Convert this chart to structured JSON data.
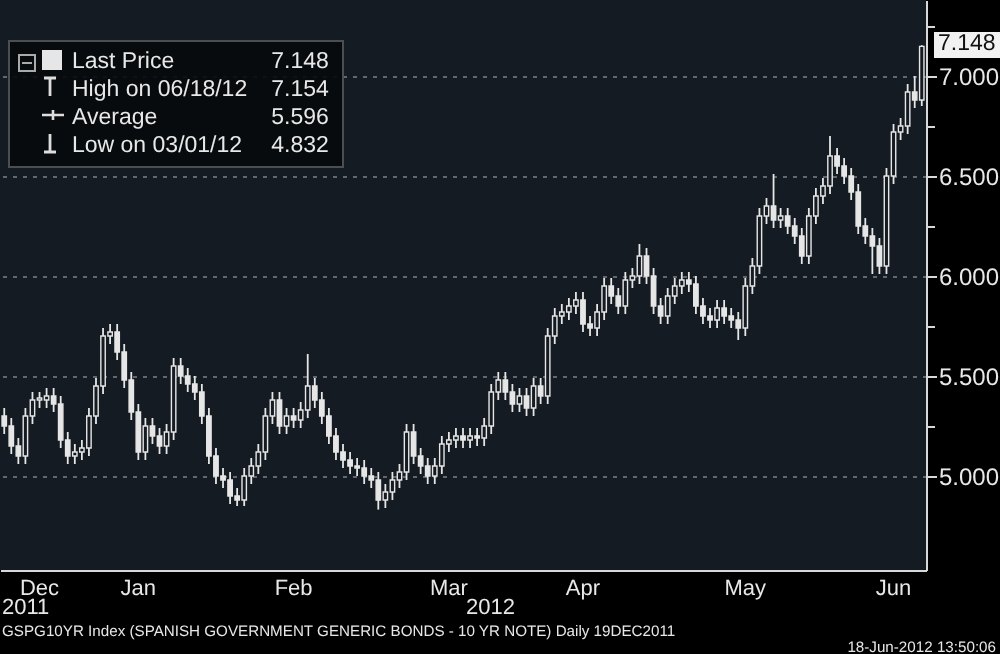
{
  "chart_data": {
    "type": "candlestick",
    "legend": "top left",
    "grid": "y",
    "categories": [
      null,
      null,
      null,
      null,
      null,
      "Dec",
      null,
      null,
      null,
      null,
      null,
      null,
      null,
      null,
      null,
      null,
      null,
      null,
      null,
      "Jan",
      null,
      null,
      null,
      null,
      null,
      null,
      null,
      null,
      null,
      null,
      null,
      null,
      null,
      null,
      null,
      null,
      null,
      null,
      null,
      null,
      null,
      "Feb",
      null,
      null,
      null,
      null,
      null,
      null,
      null,
      null,
      null,
      null,
      null,
      null,
      null,
      null,
      null,
      null,
      null,
      null,
      null,
      null,
      null,
      "Mar",
      null,
      null,
      null,
      null,
      null,
      null,
      null,
      null,
      null,
      null,
      null,
      null,
      null,
      null,
      null,
      null,
      null,
      null,
      "Apr",
      null,
      null,
      null,
      null,
      null,
      null,
      null,
      null,
      null,
      null,
      null,
      null,
      null,
      null,
      null,
      null,
      null,
      null,
      null,
      null,
      null,
      null,
      "May",
      null,
      null,
      null,
      null,
      null,
      null,
      null,
      null,
      null,
      null,
      null,
      null,
      null,
      null,
      null,
      null,
      null,
      null,
      null,
      null,
      "Jun",
      null,
      null,
      null,
      null
    ],
    "series": [
      {
        "name": "Last Price",
        "color": "#e6e6e6",
        "ohlc": [
          [
            5.3,
            5.34,
            5.21,
            5.25
          ],
          [
            5.25,
            5.29,
            5.11,
            5.15
          ],
          [
            5.15,
            5.19,
            5.06,
            5.1
          ],
          [
            5.1,
            5.34,
            5.06,
            5.3
          ],
          [
            5.3,
            5.42,
            5.26,
            5.38
          ],
          [
            5.38,
            5.42,
            5.34,
            5.39
          ],
          [
            5.38,
            5.44,
            5.34,
            5.4
          ],
          [
            5.4,
            5.44,
            5.32,
            5.36
          ],
          [
            5.36,
            5.4,
            5.14,
            5.18
          ],
          [
            5.18,
            5.22,
            5.06,
            5.1
          ],
          [
            5.1,
            5.16,
            5.06,
            5.12
          ],
          [
            5.12,
            5.18,
            5.08,
            5.14
          ],
          [
            5.14,
            5.34,
            5.1,
            5.3
          ],
          [
            5.3,
            5.49,
            5.26,
            5.45
          ],
          [
            5.45,
            5.74,
            5.41,
            5.7
          ],
          [
            5.7,
            5.76,
            5.66,
            5.72
          ],
          [
            5.72,
            5.76,
            5.58,
            5.62
          ],
          [
            5.62,
            5.66,
            5.44,
            5.48
          ],
          [
            5.48,
            5.52,
            5.28,
            5.32
          ],
          [
            5.32,
            5.36,
            5.08,
            5.12
          ],
          [
            5.12,
            5.29,
            5.08,
            5.25
          ],
          [
            5.25,
            5.29,
            5.16,
            5.2
          ],
          [
            5.2,
            5.24,
            5.11,
            5.15
          ],
          [
            5.15,
            5.26,
            5.11,
            5.22
          ],
          [
            5.22,
            5.59,
            5.18,
            5.55
          ],
          [
            5.55,
            5.59,
            5.46,
            5.5
          ],
          [
            5.5,
            5.54,
            5.42,
            5.46
          ],
          [
            5.46,
            5.5,
            5.38,
            5.42
          ],
          [
            5.42,
            5.46,
            5.26,
            5.3
          ],
          [
            5.3,
            5.34,
            5.06,
            5.1
          ],
          [
            5.1,
            5.14,
            4.96,
            5.0
          ],
          [
            5.0,
            5.04,
            4.94,
            4.98
          ],
          [
            4.98,
            5.02,
            4.86,
            4.9
          ],
          [
            4.9,
            4.94,
            4.85,
            4.88
          ],
          [
            4.88,
            5.04,
            4.85,
            5.0
          ],
          [
            5.0,
            5.09,
            4.96,
            5.05
          ],
          [
            5.05,
            5.16,
            5.01,
            5.12
          ],
          [
            5.12,
            5.34,
            5.08,
            5.3
          ],
          [
            5.3,
            5.42,
            5.26,
            5.38
          ],
          [
            5.38,
            5.42,
            5.21,
            5.25
          ],
          [
            5.25,
            5.34,
            5.21,
            5.3
          ],
          [
            5.3,
            5.34,
            5.24,
            5.28
          ],
          [
            5.28,
            5.37,
            5.24,
            5.33
          ],
          [
            5.33,
            5.61,
            5.29,
            5.45
          ],
          [
            5.45,
            5.49,
            5.34,
            5.38
          ],
          [
            5.38,
            5.42,
            5.26,
            5.3
          ],
          [
            5.3,
            5.34,
            5.16,
            5.2
          ],
          [
            5.2,
            5.24,
            5.08,
            5.12
          ],
          [
            5.12,
            5.16,
            5.04,
            5.08
          ],
          [
            5.08,
            5.12,
            5.01,
            5.05
          ],
          [
            5.05,
            5.09,
            5.0,
            5.04
          ],
          [
            5.04,
            5.08,
            4.96,
            5.0
          ],
          [
            5.0,
            5.04,
            4.94,
            4.98
          ],
          [
            4.98,
            5.02,
            4.832,
            4.88
          ],
          [
            4.88,
            4.96,
            4.84,
            4.92
          ],
          [
            4.92,
            5.02,
            4.88,
            4.98
          ],
          [
            4.98,
            5.06,
            4.94,
            5.02
          ],
          [
            5.02,
            5.26,
            4.98,
            5.22
          ],
          [
            5.22,
            5.26,
            5.06,
            5.1
          ],
          [
            5.1,
            5.14,
            5.01,
            5.05
          ],
          [
            5.05,
            5.09,
            4.96,
            5.0
          ],
          [
            5.0,
            5.09,
            4.96,
            5.05
          ],
          [
            5.05,
            5.2,
            5.01,
            5.16
          ],
          [
            5.16,
            5.22,
            5.12,
            5.18
          ],
          [
            5.18,
            5.24,
            5.14,
            5.2
          ],
          [
            5.2,
            5.24,
            5.14,
            5.18
          ],
          [
            5.18,
            5.24,
            5.14,
            5.2
          ],
          [
            5.2,
            5.24,
            5.15,
            5.19
          ],
          [
            5.19,
            5.29,
            5.15,
            5.25
          ],
          [
            5.25,
            5.46,
            5.21,
            5.42
          ],
          [
            5.42,
            5.52,
            5.38,
            5.48
          ],
          [
            5.48,
            5.52,
            5.38,
            5.42
          ],
          [
            5.42,
            5.46,
            5.32,
            5.36
          ],
          [
            5.36,
            5.44,
            5.32,
            5.4
          ],
          [
            5.4,
            5.44,
            5.3,
            5.34
          ],
          [
            5.34,
            5.49,
            5.3,
            5.45
          ],
          [
            5.45,
            5.49,
            5.36,
            5.4
          ],
          [
            5.4,
            5.74,
            5.36,
            5.7
          ],
          [
            5.7,
            5.84,
            5.66,
            5.8
          ],
          [
            5.8,
            5.86,
            5.76,
            5.82
          ],
          [
            5.82,
            5.89,
            5.78,
            5.85
          ],
          [
            5.85,
            5.92,
            5.81,
            5.88
          ],
          [
            5.88,
            5.92,
            5.72,
            5.76
          ],
          [
            5.76,
            5.8,
            5.7,
            5.74
          ],
          [
            5.74,
            5.86,
            5.7,
            5.82
          ],
          [
            5.82,
            5.99,
            5.78,
            5.95
          ],
          [
            5.95,
            5.99,
            5.86,
            5.9
          ],
          [
            5.9,
            5.94,
            5.81,
            5.85
          ],
          [
            5.85,
            6.02,
            5.81,
            5.98
          ],
          [
            5.98,
            6.04,
            5.94,
            6.0
          ],
          [
            6.0,
            6.16,
            5.96,
            6.1
          ],
          [
            6.1,
            6.14,
            5.96,
            6.0
          ],
          [
            6.0,
            6.04,
            5.81,
            5.85
          ],
          [
            5.85,
            5.89,
            5.76,
            5.8
          ],
          [
            5.8,
            5.94,
            5.76,
            5.9
          ],
          [
            5.9,
            5.99,
            5.86,
            5.95
          ],
          [
            5.95,
            6.02,
            5.91,
            5.98
          ],
          [
            5.98,
            6.02,
            5.92,
            5.96
          ],
          [
            5.96,
            6.0,
            5.81,
            5.85
          ],
          [
            5.85,
            5.89,
            5.76,
            5.8
          ],
          [
            5.8,
            5.84,
            5.74,
            5.78
          ],
          [
            5.78,
            5.88,
            5.74,
            5.84
          ],
          [
            5.84,
            5.88,
            5.76,
            5.8
          ],
          [
            5.8,
            5.84,
            5.74,
            5.78
          ],
          [
            5.78,
            5.82,
            5.68,
            5.74
          ],
          [
            5.74,
            5.99,
            5.7,
            5.95
          ],
          [
            5.95,
            6.09,
            5.91,
            6.05
          ],
          [
            6.05,
            6.34,
            6.01,
            6.3
          ],
          [
            6.3,
            6.39,
            6.26,
            6.35
          ],
          [
            6.35,
            6.51,
            6.24,
            6.28
          ],
          [
            6.28,
            6.34,
            6.24,
            6.3
          ],
          [
            6.3,
            6.34,
            6.21,
            6.25
          ],
          [
            6.25,
            6.29,
            6.16,
            6.2
          ],
          [
            6.2,
            6.24,
            6.06,
            6.1
          ],
          [
            6.1,
            6.34,
            6.06,
            6.3
          ],
          [
            6.3,
            6.44,
            6.26,
            6.4
          ],
          [
            6.4,
            6.49,
            6.36,
            6.45
          ],
          [
            6.45,
            6.7,
            6.41,
            6.6
          ],
          [
            6.6,
            6.64,
            6.51,
            6.55
          ],
          [
            6.55,
            6.59,
            6.46,
            6.5
          ],
          [
            6.5,
            6.54,
            6.38,
            6.42
          ],
          [
            6.42,
            6.46,
            6.21,
            6.25
          ],
          [
            6.25,
            6.29,
            6.16,
            6.2
          ],
          [
            6.2,
            6.24,
            6.01,
            6.15
          ],
          [
            6.15,
            6.19,
            6.01,
            6.05
          ],
          [
            6.05,
            6.54,
            6.01,
            6.5
          ],
          [
            6.5,
            6.76,
            6.46,
            6.72
          ],
          [
            6.72,
            6.79,
            6.68,
            6.75
          ],
          [
            6.75,
            6.96,
            6.71,
            6.92
          ],
          [
            6.92,
            7.0,
            6.84,
            6.88
          ],
          [
            6.88,
            7.154,
            6.85,
            7.148
          ]
        ]
      }
    ],
    "ylim": [
      4.53,
      7.38
    ],
    "yticks": [
      {
        "value": 5,
        "label": "5.000"
      },
      {
        "value": 5.25,
        "label": null
      },
      {
        "value": 5.5,
        "label": "5.500"
      },
      {
        "value": 5.75,
        "label": null
      },
      {
        "value": 6,
        "label": "6.000"
      },
      {
        "value": 6.25,
        "label": null
      },
      {
        "value": 6.5,
        "label": "6.500"
      },
      {
        "value": 6.75,
        "label": null
      },
      {
        "value": 7,
        "label": "7.000"
      },
      {
        "value": 7.25,
        "label": null
      }
    ],
    "annotations": [
      "7.148",
      "High on 06/18/12",
      "7.154",
      "Average",
      "5.596",
      "Low on 03/01/12",
      "4.832",
      "7.148",
      "2011",
      "2012",
      "GSPG10YR Index (SPANISH GOVERNMENT GENERIC BONDS - 10 YR NOTE)  Daily 19DEC2011",
      "18-Jun-2012 13:50:06"
    ]
  }
}
